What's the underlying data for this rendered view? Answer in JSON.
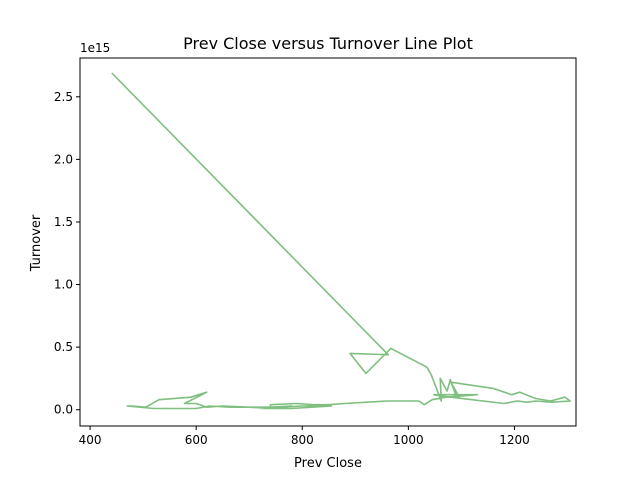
{
  "chart_data": {
    "type": "line",
    "title": "Prev Close versus Turnover Line Plot",
    "xlabel": "Prev Close",
    "ylabel": "Turnover",
    "y_offset_label": "1e15",
    "xlim": [
      381,
      1316
    ],
    "ylim": [
      -0.13,
      2.81
    ],
    "x_ticks": [
      400,
      600,
      800,
      1000,
      1200
    ],
    "y_ticks": [
      0.0,
      0.5,
      1.0,
      1.5,
      2.0,
      2.5
    ],
    "x_tick_labels": [
      "400",
      "600",
      "800",
      "1000",
      "1200"
    ],
    "y_tick_labels": [
      "0.0",
      "0.5",
      "1.0",
      "1.5",
      "2.0",
      "2.5"
    ],
    "grid": false,
    "legend": "none",
    "color": "#7fbf7f",
    "series": [
      {
        "points": [
          [
            441,
            2.69
          ],
          [
            962,
            0.44
          ],
          [
            890,
            0.45
          ],
          [
            920,
            0.29
          ],
          [
            967,
            0.49
          ],
          [
            1035,
            0.34
          ],
          [
            1043,
            0.28
          ],
          [
            1062,
            0.07
          ],
          [
            1060,
            0.25
          ],
          [
            1073,
            0.15
          ],
          [
            1079,
            0.24
          ],
          [
            1090,
            0.11
          ],
          [
            1096,
            0.1
          ],
          [
            1080,
            0.22
          ],
          [
            1160,
            0.17
          ],
          [
            1195,
            0.12
          ],
          [
            1210,
            0.14
          ],
          [
            1240,
            0.09
          ],
          [
            1268,
            0.07
          ],
          [
            1295,
            0.1
          ],
          [
            1305,
            0.07
          ],
          [
            1270,
            0.06
          ],
          [
            1240,
            0.07
          ],
          [
            1225,
            0.06
          ],
          [
            1205,
            0.07
          ],
          [
            1180,
            0.05
          ],
          [
            1120,
            0.08
          ],
          [
            1062,
            0.11
          ],
          [
            1048,
            0.12
          ],
          [
            1130,
            0.12
          ],
          [
            1070,
            0.1
          ],
          [
            1045,
            0.08
          ],
          [
            1030,
            0.04
          ],
          [
            1020,
            0.07
          ],
          [
            960,
            0.07
          ],
          [
            880,
            0.05
          ],
          [
            850,
            0.04
          ],
          [
            820,
            0.04
          ],
          [
            790,
            0.05
          ],
          [
            740,
            0.04
          ],
          [
            740,
            0.02
          ],
          [
            780,
            0.03
          ],
          [
            740,
            0.01
          ],
          [
            700,
            0.02
          ],
          [
            650,
            0.03
          ],
          [
            620,
            0.02
          ],
          [
            600,
            0.05
          ],
          [
            578,
            0.05
          ],
          [
            620,
            0.14
          ],
          [
            590,
            0.1
          ],
          [
            530,
            0.08
          ],
          [
            505,
            0.02
          ],
          [
            480,
            0.03
          ],
          [
            470,
            0.03
          ],
          [
            520,
            0.01
          ],
          [
            600,
            0.01
          ],
          [
            625,
            0.03
          ],
          [
            665,
            0.02
          ],
          [
            700,
            0.02
          ],
          [
            760,
            0.02
          ],
          [
            800,
            0.03
          ],
          [
            855,
            0.03
          ],
          [
            780,
            0.01
          ],
          [
            720,
            0.01
          ]
        ]
      }
    ]
  }
}
